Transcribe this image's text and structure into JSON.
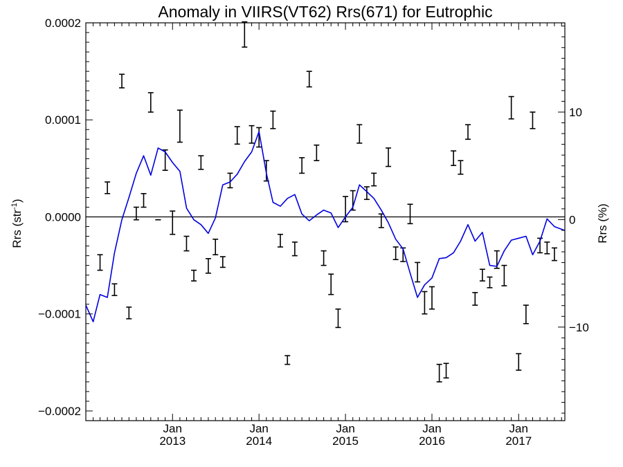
{
  "chart_data": {
    "type": "line",
    "title": "Anomaly in VIIRS(VT62) Rrs(671) for Eutrophic",
    "ylabel": "Rrs (str",
    "ylabel_sup": "-1",
    "ylabel_close": ")",
    "y2label": "Rrs (%)",
    "xlim": [
      "2012-01-01",
      "2017-07-15"
    ],
    "ylim": [
      -0.00021,
      0.0002
    ],
    "y2lim": [
      -18.7,
      18.3
    ],
    "grid": false,
    "y_ticks": [
      {
        "value": 0.0002,
        "label": "0.0002"
      },
      {
        "value": 0.0001,
        "label": "0.0001"
      },
      {
        "value": 0.0,
        "label": "0.0000"
      },
      {
        "value": -0.0001,
        "label": "−0.0001"
      },
      {
        "value": -0.0002,
        "label": "−0.0002"
      }
    ],
    "y2_ticks": [
      {
        "value": 10,
        "label": "10"
      },
      {
        "value": 0,
        "label": "0"
      },
      {
        "value": -10,
        "label": "−10"
      }
    ],
    "x_ticks": [
      {
        "date": "2013-01-01",
        "month": "Jan",
        "year": "2013"
      },
      {
        "date": "2014-01-01",
        "month": "Jan",
        "year": "2014"
      },
      {
        "date": "2015-01-01",
        "month": "Jan",
        "year": "2015"
      },
      {
        "date": "2016-01-01",
        "month": "Jan",
        "year": "2016"
      },
      {
        "date": "2017-01-01",
        "month": "Jan",
        "year": "2017"
      }
    ],
    "reference_line": 0,
    "series": [
      {
        "kind": "errorbar",
        "color": "#000000",
        "points": [
          {
            "x": "2012-03-01",
            "lo": -5.5e-05,
            "hi": -3.9e-05
          },
          {
            "x": "2012-04-01",
            "lo": 2.4e-05,
            "hi": 3.6e-05
          },
          {
            "x": "2012-05-01",
            "lo": -8.1e-05,
            "hi": -6.9e-05
          },
          {
            "x": "2012-06-01",
            "lo": 0.000133,
            "hi": 0.000147
          },
          {
            "x": "2012-07-01",
            "lo": -0.000105,
            "hi": -9.3e-05
          },
          {
            "x": "2012-08-01",
            "lo": -3e-06,
            "hi": 1e-05
          },
          {
            "x": "2012-09-01",
            "lo": 1e-05,
            "hi": 2.4e-05
          },
          {
            "x": "2012-10-01",
            "lo": 0.000108,
            "hi": 0.000128
          },
          {
            "x": "2012-11-01",
            "lo": -3e-06,
            "hi": -3e-06
          },
          {
            "x": "2012-12-01",
            "lo": 4.8e-05,
            "hi": 6.9e-05
          },
          {
            "x": "2013-01-01",
            "lo": -1.8e-05,
            "hi": 6e-06
          },
          {
            "x": "2013-02-01",
            "lo": 7.7e-05,
            "hi": 0.00011
          },
          {
            "x": "2013-03-01",
            "lo": -3.5e-05,
            "hi": -2e-05
          },
          {
            "x": "2013-04-01",
            "lo": -6.6e-05,
            "hi": -5.5e-05
          },
          {
            "x": "2013-05-01",
            "lo": 4.9e-05,
            "hi": 6.3e-05
          },
          {
            "x": "2013-06-01",
            "lo": -5.8e-05,
            "hi": -4.3e-05
          },
          {
            "x": "2013-07-01",
            "lo": -3.9e-05,
            "hi": -2.3e-05
          },
          {
            "x": "2013-08-01",
            "lo": -5.2e-05,
            "hi": -4.1e-05
          },
          {
            "x": "2013-09-01",
            "lo": 3e-05,
            "hi": 4.5e-05
          },
          {
            "x": "2013-10-01",
            "lo": 7.5e-05,
            "hi": 9.3e-05
          },
          {
            "x": "2013-11-01",
            "lo": 0.000175,
            "hi": 0.000201
          },
          {
            "x": "2013-12-01",
            "lo": 7.6e-05,
            "hi": 9.4e-05
          },
          {
            "x": "2014-01-01",
            "lo": 7.2e-05,
            "hi": 9.2e-05
          },
          {
            "x": "2014-02-01",
            "lo": 3.7e-05,
            "hi": 5.8e-05
          },
          {
            "x": "2014-03-01",
            "lo": 9.1e-05,
            "hi": 0.000109
          },
          {
            "x": "2014-04-01",
            "lo": -3.1e-05,
            "hi": -1.8e-05
          },
          {
            "x": "2014-05-01",
            "lo": -0.000152,
            "hi": -0.000143
          },
          {
            "x": "2014-06-01",
            "lo": -4e-05,
            "hi": -2.6e-05
          },
          {
            "x": "2014-07-01",
            "lo": 4.5e-05,
            "hi": 6.1e-05
          },
          {
            "x": "2014-08-01",
            "lo": 0.000134,
            "hi": 0.00015
          },
          {
            "x": "2014-09-01",
            "lo": 5.8e-05,
            "hi": 7.4e-05
          },
          {
            "x": "2014-10-01",
            "lo": -5e-05,
            "hi": -3.5e-05
          },
          {
            "x": "2014-11-01",
            "lo": -8e-05,
            "hi": -5.9e-05
          },
          {
            "x": "2014-12-01",
            "lo": -0.000114,
            "hi": -9.5e-05
          },
          {
            "x": "2015-01-01",
            "lo": -5e-06,
            "hi": 2.1e-05
          },
          {
            "x": "2015-02-01",
            "lo": 7e-06,
            "hi": 2.7e-05
          },
          {
            "x": "2015-03-01",
            "lo": 7.6e-05,
            "hi": 9.5e-05
          },
          {
            "x": "2015-04-01",
            "lo": 1.8e-05,
            "hi": 3.1e-05
          },
          {
            "x": "2015-05-01",
            "lo": 3.2e-05,
            "hi": 4.5e-05
          },
          {
            "x": "2015-06-01",
            "lo": -1.1e-05,
            "hi": 3e-06
          },
          {
            "x": "2015-07-01",
            "lo": 5.2e-05,
            "hi": 7.1e-05
          },
          {
            "x": "2015-08-01",
            "lo": -4.4e-05,
            "hi": -3.1e-05
          },
          {
            "x": "2015-09-01",
            "lo": -4.6e-05,
            "hi": -3.2e-05
          },
          {
            "x": "2015-10-01",
            "lo": -7e-06,
            "hi": 1.3e-05
          },
          {
            "x": "2015-11-01",
            "lo": -6.7e-05,
            "hi": -4.7e-05
          },
          {
            "x": "2015-12-01",
            "lo": -0.0001,
            "hi": -7.7e-05
          },
          {
            "x": "2016-01-01",
            "lo": -9.5e-05,
            "hi": -7.2e-05
          },
          {
            "x": "2016-02-01",
            "lo": -0.00017,
            "hi": -0.000152
          },
          {
            "x": "2016-03-01",
            "lo": -0.000166,
            "hi": -0.000151
          },
          {
            "x": "2016-04-01",
            "lo": 5.3e-05,
            "hi": 6.8e-05
          },
          {
            "x": "2016-05-01",
            "lo": 4.4e-05,
            "hi": 5.8e-05
          },
          {
            "x": "2016-06-01",
            "lo": 8e-05,
            "hi": 9.5e-05
          },
          {
            "x": "2016-07-01",
            "lo": -9.1e-05,
            "hi": -7.8e-05
          },
          {
            "x": "2016-08-01",
            "lo": -6.6e-05,
            "hi": -5.4e-05
          },
          {
            "x": "2016-09-01",
            "lo": -7.3e-05,
            "hi": -6.2e-05
          },
          {
            "x": "2016-10-01",
            "lo": -5.3e-05,
            "hi": -3.5e-05
          },
          {
            "x": "2016-11-01",
            "lo": -7.1e-05,
            "hi": -5e-05
          },
          {
            "x": "2016-12-01",
            "lo": 0.000101,
            "hi": 0.000124
          },
          {
            "x": "2017-01-01",
            "lo": -0.000158,
            "hi": -0.000141
          },
          {
            "x": "2017-02-01",
            "lo": -0.00011,
            "hi": -9.1e-05
          },
          {
            "x": "2017-03-01",
            "lo": 9.1e-05,
            "hi": 0.000108
          },
          {
            "x": "2017-04-01",
            "lo": -3.7e-05,
            "hi": -2.2e-05
          },
          {
            "x": "2017-05-01",
            "lo": -3.8e-05,
            "hi": -2.6e-05
          },
          {
            "x": "2017-06-01",
            "lo": -4.5e-05,
            "hi": -3.2e-05
          }
        ]
      },
      {
        "kind": "line",
        "color": "#0000e0",
        "x": [
          "2012-01-01",
          "2012-02-01",
          "2012-03-01",
          "2012-04-01",
          "2012-05-01",
          "2012-06-01",
          "2012-07-01",
          "2012-08-01",
          "2012-09-01",
          "2012-10-01",
          "2012-11-01",
          "2012-12-01",
          "2013-01-01",
          "2013-02-01",
          "2013-03-01",
          "2013-04-01",
          "2013-05-01",
          "2013-06-01",
          "2013-07-01",
          "2013-08-01",
          "2013-09-01",
          "2013-10-01",
          "2013-11-01",
          "2013-12-01",
          "2014-01-01",
          "2014-02-01",
          "2014-03-01",
          "2014-04-01",
          "2014-05-01",
          "2014-06-01",
          "2014-07-01",
          "2014-08-01",
          "2014-09-01",
          "2014-10-01",
          "2014-11-01",
          "2014-12-01",
          "2015-01-01",
          "2015-02-01",
          "2015-03-01",
          "2015-04-01",
          "2015-05-01",
          "2015-06-01",
          "2015-07-01",
          "2015-08-01",
          "2015-09-01",
          "2015-10-01",
          "2015-11-01",
          "2015-12-01",
          "2016-01-01",
          "2016-02-01",
          "2016-03-01",
          "2016-04-01",
          "2016-05-01",
          "2016-06-01",
          "2016-07-01",
          "2016-08-01",
          "2016-09-01",
          "2016-10-01",
          "2016-11-01",
          "2016-12-01",
          "2017-01-01",
          "2017-02-01",
          "2017-03-01",
          "2017-04-01",
          "2017-05-01",
          "2017-06-01",
          "2017-07-15"
        ],
        "y": [
          -9.1e-05,
          -0.000108,
          -8e-05,
          -8.3e-05,
          -3.7e-05,
          -3e-06,
          2e-05,
          4.5e-05,
          6.3e-05,
          4.3e-05,
          7.1e-05,
          6.7e-05,
          5.6e-05,
          4.7e-05,
          9e-06,
          -3e-06,
          -8e-06,
          -1.7e-05,
          -1e-06,
          3.3e-05,
          3.6e-05,
          4.4e-05,
          5.7e-05,
          6.7e-05,
          8.8e-05,
          4.5e-05,
          1.5e-05,
          1.1e-05,
          1.9e-05,
          2.3e-05,
          3e-06,
          -4e-06,
          2e-06,
          7e-06,
          4e-06,
          -1.1e-05,
          0.0,
          1e-05,
          3.3e-05,
          2.6e-05,
          1.9e-05,
          7e-06,
          -6e-06,
          -2.3e-05,
          -3.3e-05,
          -5.8e-05,
          -8.3e-05,
          -7e-05,
          -6.3e-05,
          -4.3e-05,
          -4.2e-05,
          -3.7e-05,
          -2.5e-05,
          -8e-06,
          -2.5e-05,
          -1.6e-05,
          -5e-05,
          -5.1e-05,
          -3.5e-05,
          -2.4e-05,
          -2.2e-05,
          -2e-05,
          -3.9e-05,
          -2.5e-05,
          -2e-06,
          -1e-05,
          -1.4e-05
        ]
      }
    ]
  }
}
